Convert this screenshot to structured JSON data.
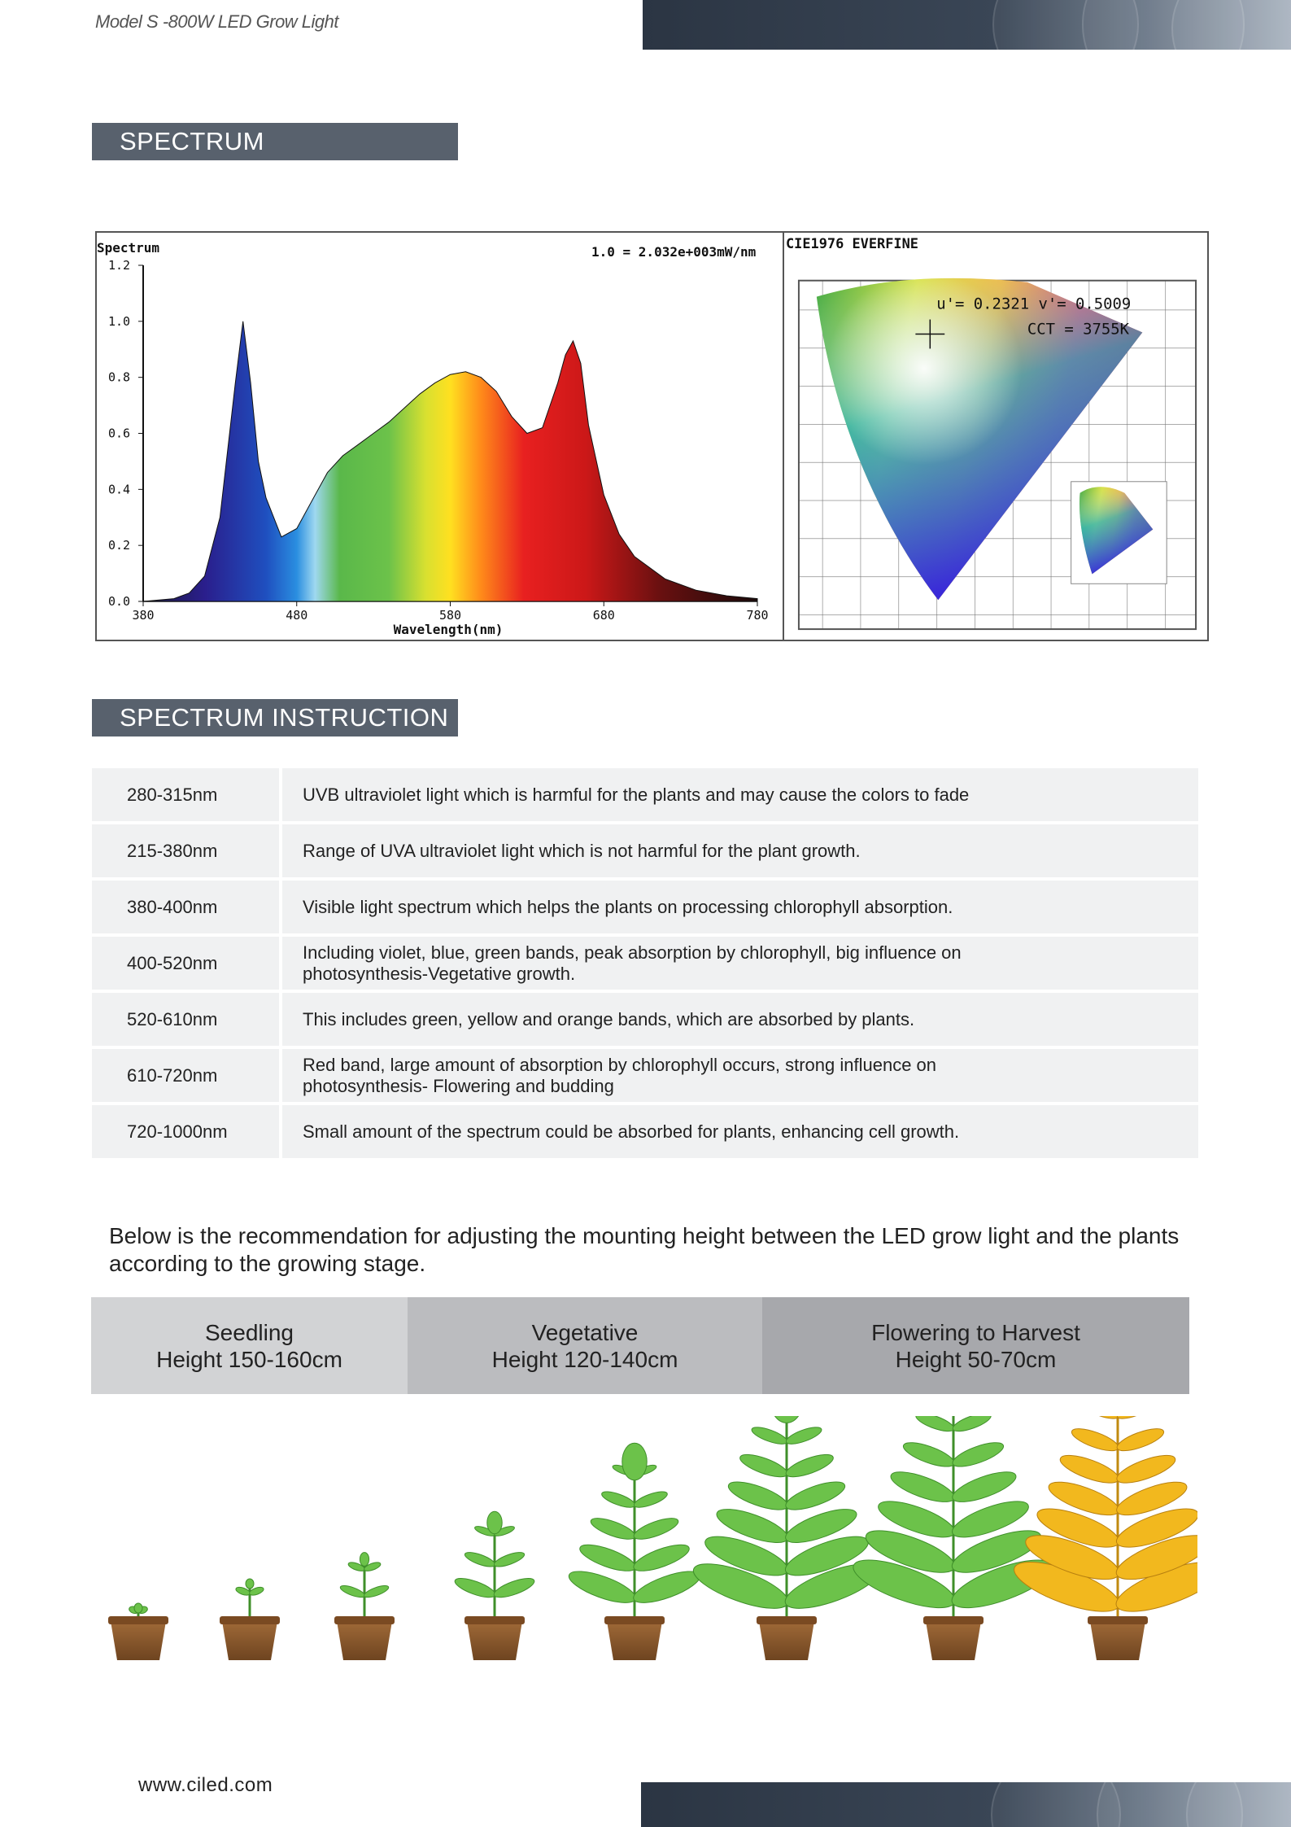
{
  "header": {
    "title": "Model S -800W LED Grow Light"
  },
  "sections": {
    "spectrum_title": "SPECTRUM",
    "instruction_title": "SPECTRUM INSTRUCTION"
  },
  "chart_data": [
    {
      "type": "area",
      "title": "Spectrum",
      "annotation": "1.0 = 2.032e+003mW/nm",
      "xlabel": "Wavelength(nm)",
      "ylabel": "",
      "xlim": [
        380,
        780
      ],
      "ylim": [
        0,
        1.2
      ],
      "x_ticks": [
        "380",
        "480",
        "580",
        "680",
        "780"
      ],
      "y_ticks": [
        "0.0",
        "0.2",
        "0.4",
        "0.6",
        "0.8",
        "1.0",
        "1.2"
      ],
      "x": [
        380,
        400,
        410,
        420,
        430,
        440,
        445,
        450,
        455,
        460,
        470,
        480,
        490,
        500,
        510,
        520,
        530,
        540,
        550,
        560,
        570,
        580,
        590,
        600,
        610,
        620,
        630,
        640,
        650,
        655,
        660,
        665,
        670,
        680,
        690,
        700,
        720,
        740,
        760,
        780
      ],
      "values": [
        0.0,
        0.01,
        0.03,
        0.09,
        0.3,
        0.78,
        1.0,
        0.78,
        0.5,
        0.37,
        0.23,
        0.26,
        0.36,
        0.46,
        0.52,
        0.56,
        0.6,
        0.64,
        0.69,
        0.74,
        0.78,
        0.81,
        0.82,
        0.8,
        0.75,
        0.66,
        0.6,
        0.62,
        0.78,
        0.88,
        0.93,
        0.85,
        0.63,
        0.38,
        0.24,
        0.16,
        0.08,
        0.04,
        0.02,
        0.01
      ],
      "grid": false
    },
    {
      "type": "scatter",
      "title": "CIE1976 EVERFINE",
      "readout": "u'= 0.2321 v'= 0.5009",
      "cct": "CCT = 3755K",
      "x": [
        0.2321
      ],
      "values": [
        0.5009
      ]
    }
  ],
  "instructions": {
    "rows": [
      {
        "range": "280-315nm",
        "desc": "UVB ultraviolet light which is harmful for the plants and may cause the colors to fade"
      },
      {
        "range": "215-380nm",
        "desc": "Range of UVA ultraviolet light which is not harmful for the plant growth."
      },
      {
        "range": "380-400nm",
        "desc": "Visible light spectrum which helps the plants on processing chlorophyll absorption."
      },
      {
        "range": "400-520nm",
        "desc": "Including violet, blue, green bands, peak absorption by chlorophyll, big influence on photosynthesis-Vegetative growth."
      },
      {
        "range": "520-610nm",
        "desc": "This includes green, yellow and orange bands, which are absorbed by plants."
      },
      {
        "range": "610-720nm",
        "desc": "Red band, large amount of absorption by chlorophyll occurs, strong influence on photosynthesis- Flowering and budding"
      },
      {
        "range": "720-1000nm",
        "desc": "Small amount of the spectrum could be absorbed for plants, enhancing cell growth."
      }
    ]
  },
  "recommendation": "Below is the recommendation for adjusting the mounting height between the LED grow light and the plants according to the growing stage.",
  "stages": [
    {
      "name": "Seedling",
      "height": "Height 150-160cm"
    },
    {
      "name": "Vegetative",
      "height": "Height 120-140cm"
    },
    {
      "name": "Flowering to Harvest",
      "height": "Height 50-70cm"
    }
  ],
  "colors": {
    "band": "#2b3543",
    "section_header": "#58616d",
    "plant_green": "#6cc24a",
    "plant_yellow": "#f2b81e",
    "pot": "#8a5a2e"
  },
  "footer": {
    "url": "www.ciled.com"
  }
}
